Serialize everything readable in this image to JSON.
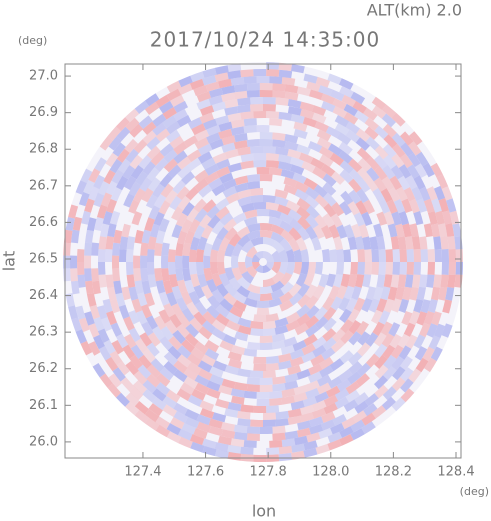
{
  "chart_data": {
    "type": "radar-image",
    "title": "2017/10/24 14:35:00",
    "altitude_label": "ALT(km) 2.0",
    "xlabel": "lon",
    "ylabel": "lat",
    "xunit": "(deg)",
    "yunit": "(deg)",
    "xlim": [
      127.151,
      128.416
    ],
    "ylim": [
      25.956,
      27.033
    ],
    "xticks": [
      127.4,
      127.6,
      127.8,
      {
        "value": 128,
        "label": "128.0"
      },
      128.2,
      128.4
    ],
    "yticks": [
      {
        "value": 26,
        "label": "26.0"
      },
      26.1,
      26.2,
      26.3,
      26.4,
      26.5,
      26.6,
      26.7,
      26.8,
      26.9,
      {
        "value": 27,
        "label": "27.0"
      }
    ]
  }
}
